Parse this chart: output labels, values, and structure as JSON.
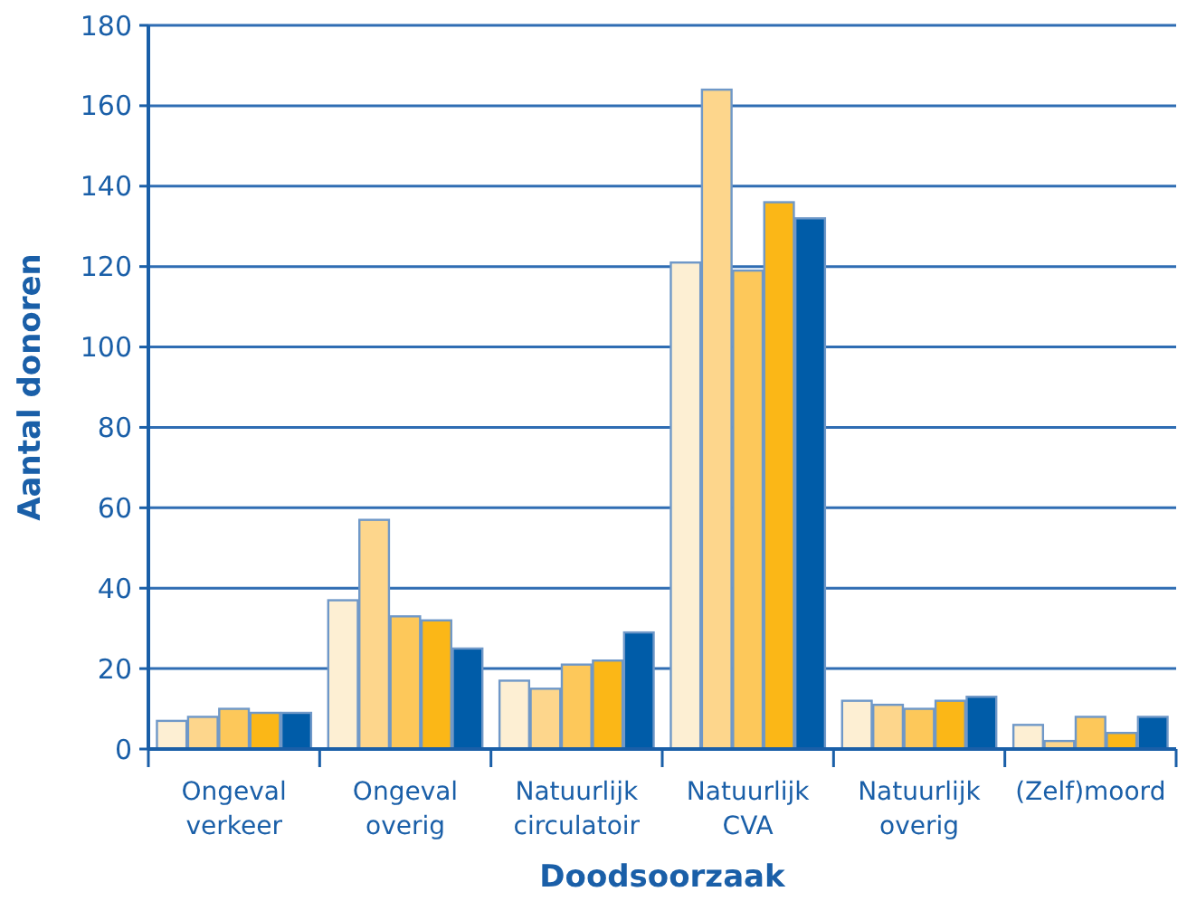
{
  "chart_data": {
    "type": "bar",
    "xlabel": "Doodsoorzaak",
    "ylabel": "Aantal donoren",
    "categories": [
      "Ongeval verkeer",
      "Ongeval overig",
      "Natuurlijk circulatoir",
      "Natuurlijk CVA",
      "Natuurlijk overig",
      "(Zelf)moord"
    ],
    "series": [
      {
        "color": "#fdefd3",
        "values": [
          7,
          37,
          17,
          121,
          12,
          6
        ]
      },
      {
        "color": "#fdd68c",
        "values": [
          8,
          57,
          15,
          164,
          11,
          2
        ]
      },
      {
        "color": "#fdc85a",
        "values": [
          10,
          33,
          21,
          119,
          10,
          8
        ]
      },
      {
        "color": "#fbb717",
        "values": [
          9,
          32,
          22,
          136,
          12,
          4
        ]
      },
      {
        "color": "#005ca8",
        "values": [
          9,
          25,
          29,
          132,
          13,
          8
        ]
      }
    ],
    "ylim": [
      0,
      180
    ],
    "yticks": [
      0,
      20,
      40,
      60,
      80,
      100,
      120,
      140,
      160,
      180
    ],
    "grid": "y"
  }
}
